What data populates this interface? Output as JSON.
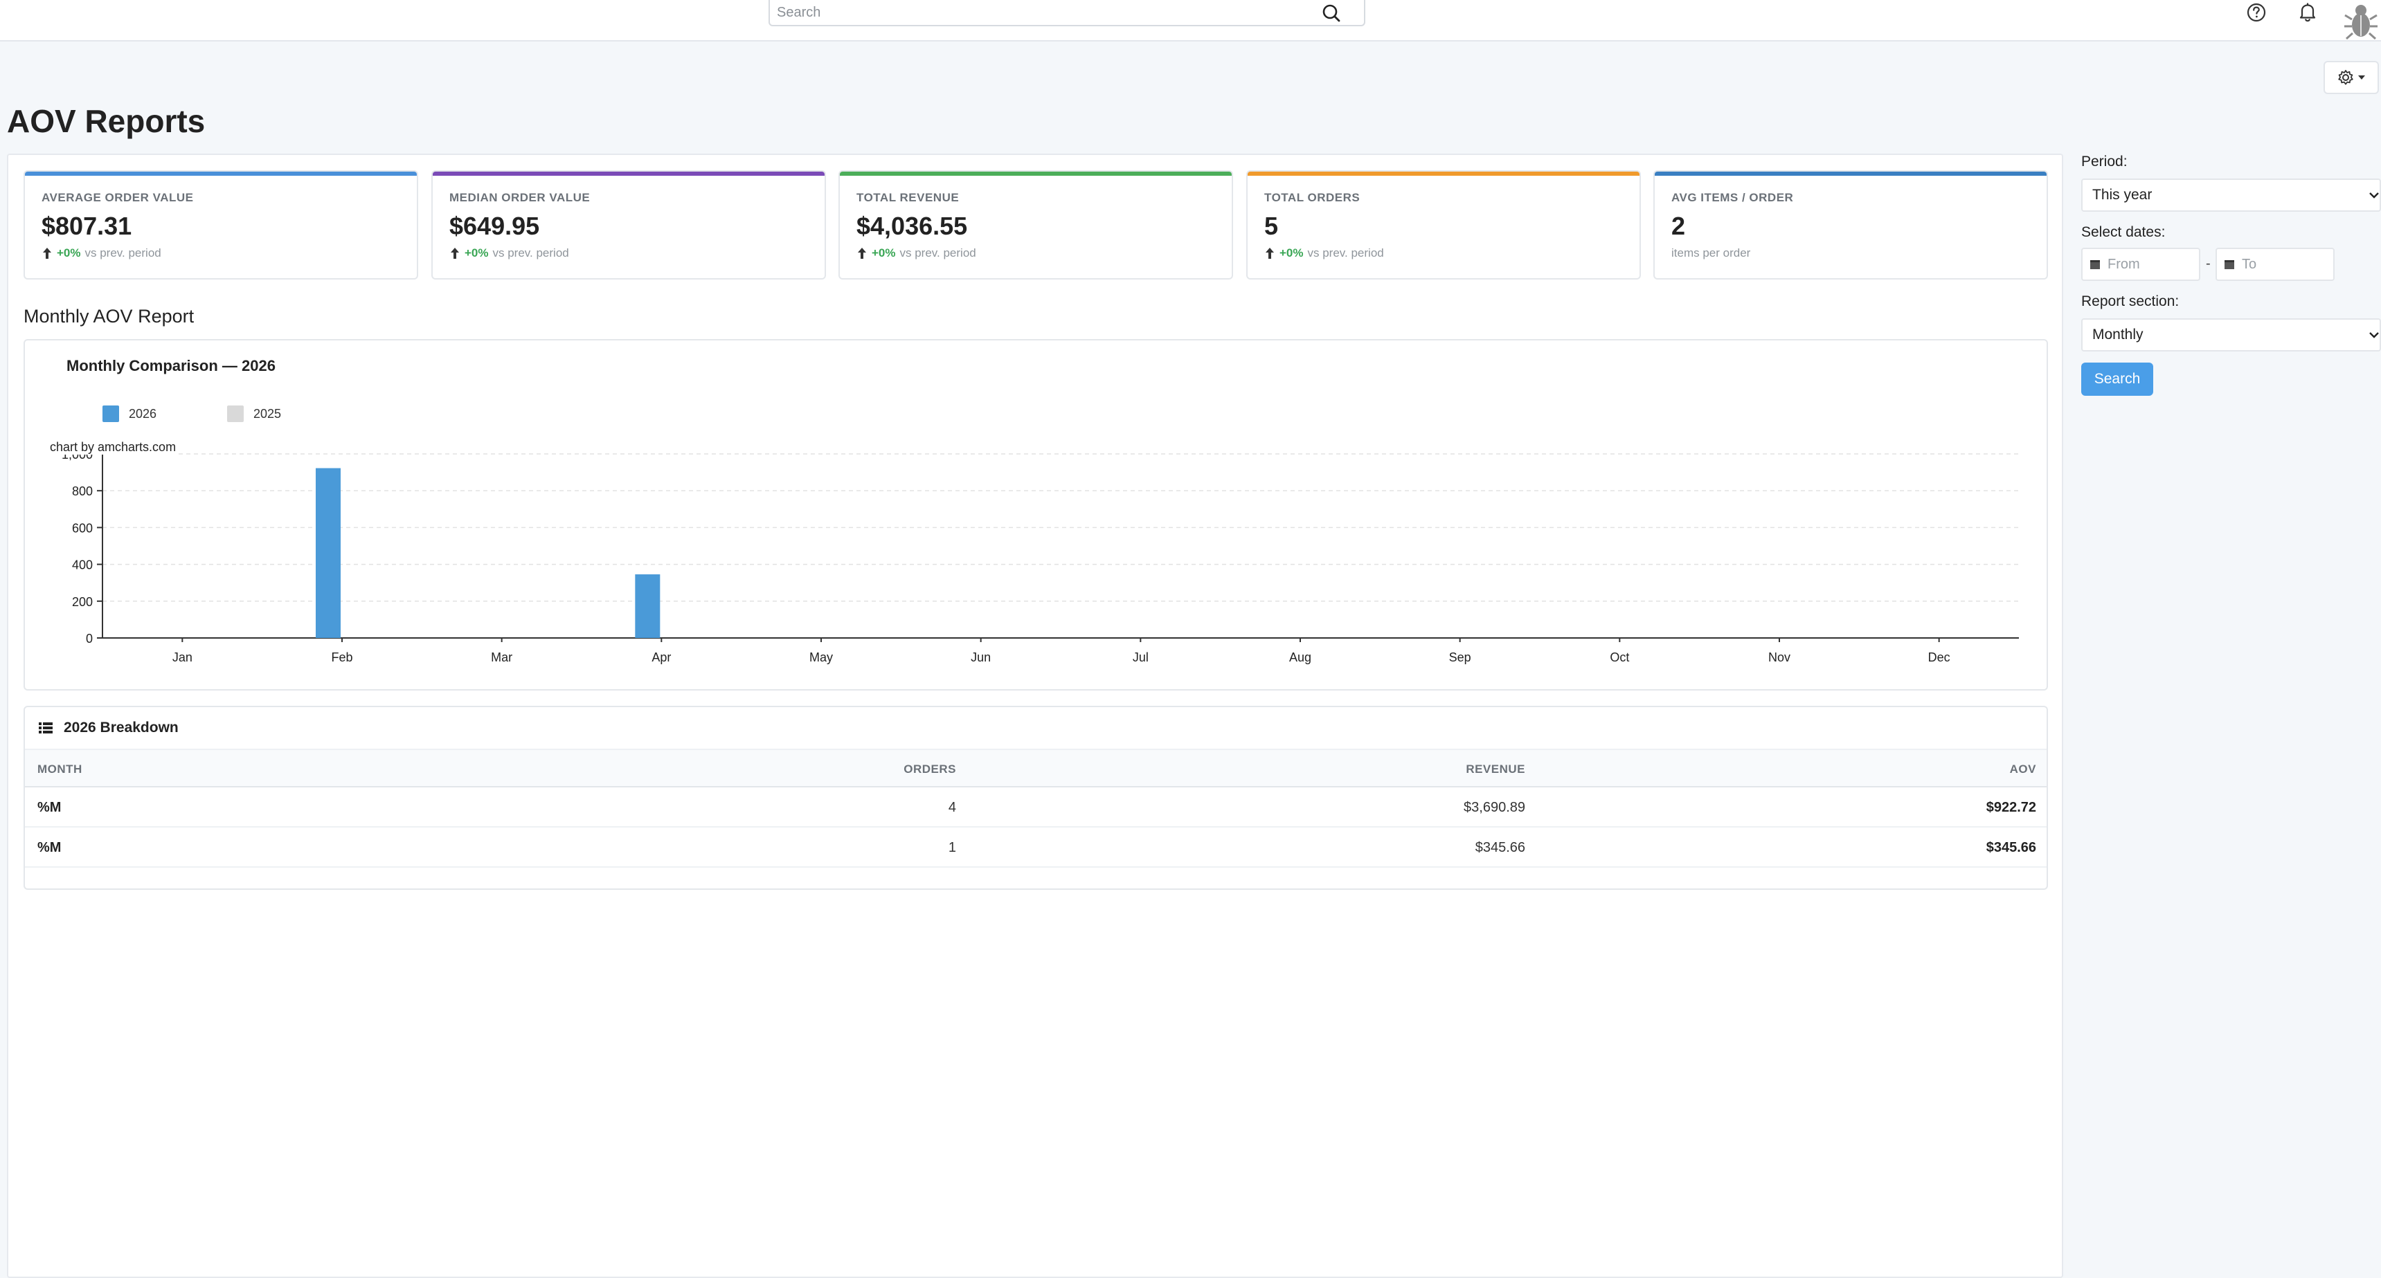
{
  "topbar": {
    "search_placeholder": "Search",
    "icons": [
      "search-icon",
      "help-icon",
      "bell-icon",
      "avatar"
    ]
  },
  "page": {
    "title": "AOV Reports"
  },
  "kpis": [
    {
      "label": "AVERAGE ORDER VALUE",
      "value": "$807.31",
      "delta": "+0%",
      "delta_text": "vs prev. period",
      "accent": "#4a90d9"
    },
    {
      "label": "MEDIAN ORDER VALUE",
      "value": "$649.95",
      "delta": "+0%",
      "delta_text": "vs prev. period",
      "accent": "#7b4bb7"
    },
    {
      "label": "TOTAL REVENUE",
      "value": "$4,036.55",
      "delta": "+0%",
      "delta_text": "vs prev. period",
      "accent": "#4cae5a"
    },
    {
      "label": "TOTAL ORDERS",
      "value": "5",
      "delta": "+0%",
      "delta_text": "vs prev. period",
      "accent": "#f09a2c"
    },
    {
      "label": "AVG ITEMS / ORDER",
      "value": "2",
      "sub": "items per order",
      "accent": "#3a7fc2"
    }
  ],
  "report": {
    "section_title": "Monthly AOV Report",
    "chart_title": "Monthly Comparison — 2026",
    "credit": "chart by amcharts.com"
  },
  "chart_data": {
    "type": "bar",
    "title": "Monthly Comparison — 2026",
    "categories": [
      "Jan",
      "Feb",
      "Mar",
      "Apr",
      "May",
      "Jun",
      "Jul",
      "Aug",
      "Sep",
      "Oct",
      "Nov",
      "Dec"
    ],
    "series": [
      {
        "name": "2026",
        "color": "#4a9ad8",
        "values": [
          0,
          922.72,
          0,
          345.66,
          0,
          0,
          0,
          0,
          0,
          0,
          0,
          0
        ]
      },
      {
        "name": "2025",
        "color": "#d9d9d9",
        "values": [
          0,
          0,
          0,
          0,
          0,
          0,
          0,
          0,
          0,
          0,
          0,
          0
        ]
      }
    ],
    "yticks": [
      "0",
      "200",
      "400",
      "600",
      "800",
      "1,000"
    ],
    "ylim": [
      0,
      1000
    ],
    "grid": true,
    "legend": "top-left"
  },
  "table": {
    "title": "2026 Breakdown",
    "columns": [
      "MONTH",
      "ORDERS",
      "REVENUE",
      "AOV"
    ],
    "rows": [
      {
        "month": "%M",
        "orders": "4",
        "revenue": "$3,690.89",
        "aov": "$922.72"
      },
      {
        "month": "%M",
        "orders": "1",
        "revenue": "$345.66",
        "aov": "$345.66"
      }
    ]
  },
  "filters": {
    "period_label": "Period:",
    "period_value": "This year",
    "dates_label": "Select dates:",
    "from_placeholder": "From",
    "to_placeholder": "To",
    "date_separator": "-",
    "section_label": "Report section:",
    "section_value": "Monthly",
    "search_label": "Search"
  }
}
